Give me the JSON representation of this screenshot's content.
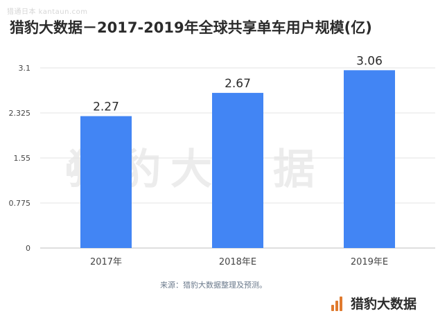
{
  "watermarks": {
    "corner": "猎通日本 kantaun.com",
    "background": "猎豹大数据"
  },
  "chart_data": {
    "type": "bar",
    "title": "猎豹大数据－2017-2019年全球共享单车用户规模(亿)",
    "categories": [
      "2017年",
      "2018年E",
      "2019年E"
    ],
    "values": [
      2.27,
      2.67,
      3.06
    ],
    "data_labels": [
      "2.27",
      "2.67",
      "3.06"
    ],
    "yticks": [
      0,
      0.775,
      1.55,
      2.325,
      3.1
    ],
    "ytick_labels": [
      "0",
      "0.775",
      "1.55",
      "2.325",
      "3.1"
    ],
    "ylim": [
      0,
      3.1
    ],
    "xlabel": "",
    "ylabel": "",
    "grid": true,
    "legend": "none",
    "bar_color": "#4285f4"
  },
  "source": "来源：猎豹大数据整理及预测。",
  "brand": {
    "name": "猎豹大数据",
    "icon": "bar-logo-icon",
    "color": "#e07a2e"
  }
}
